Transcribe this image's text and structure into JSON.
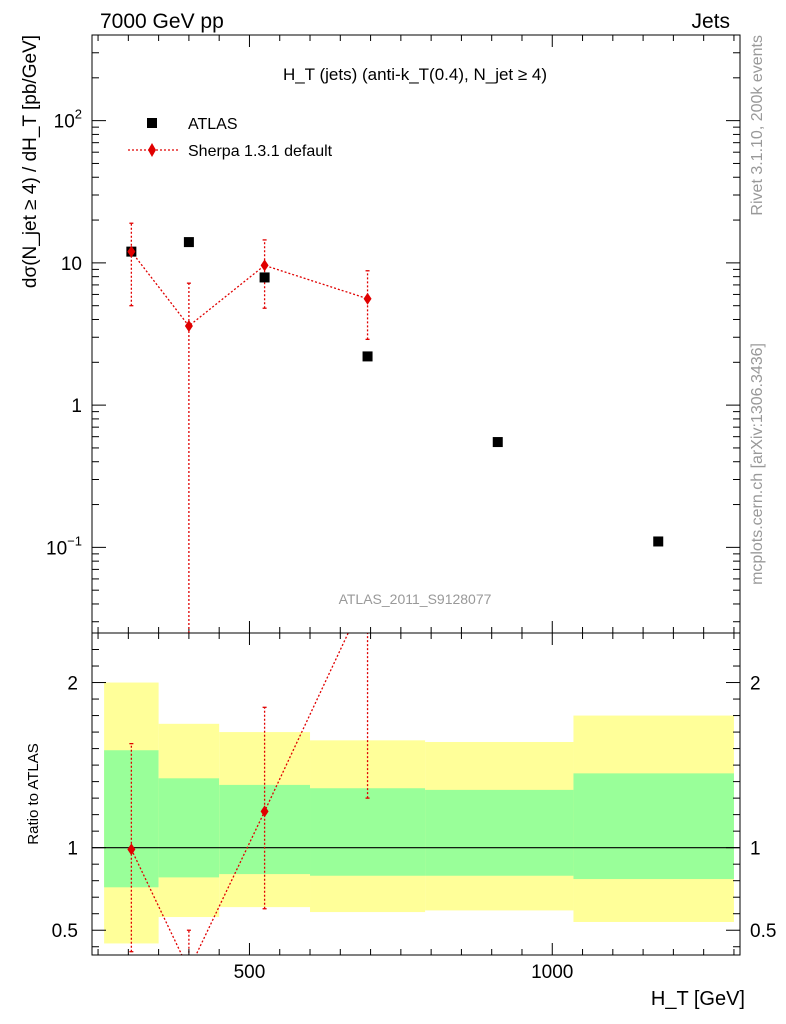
{
  "header": {
    "left": "7000 GeV pp",
    "right": "Jets"
  },
  "side_labels": {
    "right_top": "Rivet 3.1.10,  200k events",
    "right_bottom": "mcplots.cern.ch [arXiv:1306.3436]"
  },
  "watermark": "ATLAS_2011_S9128077",
  "colors": {
    "data": "#000000",
    "mc": "#e00000",
    "band_inner": "#99ff99",
    "band_outer": "#ffff99",
    "side_text": "#999999"
  },
  "chart_data": [
    {
      "type": "scatter",
      "panel": "main",
      "title": "H_T (jets) (anti-k_T(0.4), N_jet ≥ 4)",
      "ylabel": "dσ(N_jet ≥ 4) / dH_T [pb/GeV]",
      "xlabel": "",
      "log_y": true,
      "ylim": [
        0.025,
        400
      ],
      "xlim": [
        240,
        1310
      ],
      "y_tick_labels": [
        "10^-1",
        "1",
        "10",
        "10^2"
      ],
      "legend_position": "top-left",
      "series": [
        {
          "name": "ATLAS",
          "marker": "square",
          "x": [
            305,
            400,
            525,
            695,
            910,
            1175
          ],
          "y": [
            12,
            14,
            7.9,
            2.2,
            0.55,
            0.11
          ]
        },
        {
          "name": "Sherpa 1.3.1 default",
          "marker": "diamond",
          "line": "dotted",
          "x": [
            305,
            400,
            525,
            695
          ],
          "y": [
            12,
            3.6,
            9.6,
            5.6
          ],
          "y_err_low": [
            5.0,
            0.025,
            4.8,
            2.9
          ],
          "y_err_high": [
            19.0,
            7.2,
            14.5,
            8.8
          ]
        }
      ]
    },
    {
      "type": "line",
      "panel": "ratio",
      "ylabel": "Ratio to ATLAS",
      "xlabel": "H_T [GeV]",
      "ylim": [
        0.35,
        2.3
      ],
      "xlim": [
        240,
        1310
      ],
      "x_ticks": [
        500,
        1000
      ],
      "y_ticks": [
        0.5,
        1,
        2
      ],
      "bands": {
        "edges": [
          260,
          350,
          450,
          600,
          790,
          1035,
          1300
        ],
        "inner_low": [
          0.76,
          0.82,
          0.84,
          0.83,
          0.83,
          0.81
        ],
        "inner_high": [
          1.59,
          1.42,
          1.38,
          1.36,
          1.35,
          1.45
        ],
        "outer_low": [
          0.42,
          0.58,
          0.64,
          0.61,
          0.62,
          0.55
        ],
        "outer_high": [
          2.0,
          1.75,
          1.7,
          1.65,
          1.64,
          1.8
        ]
      },
      "series": [
        {
          "name": "Sherpa 1.3.1 default",
          "x": [
            305,
            400,
            525,
            695
          ],
          "y": [
            0.99,
            0.26,
            1.22,
            2.55
          ],
          "y_err_low": [
            0.37,
            0.0,
            0.63,
            1.3
          ],
          "y_err_high": [
            1.63,
            0.5,
            1.85,
            4.0
          ]
        }
      ]
    }
  ]
}
